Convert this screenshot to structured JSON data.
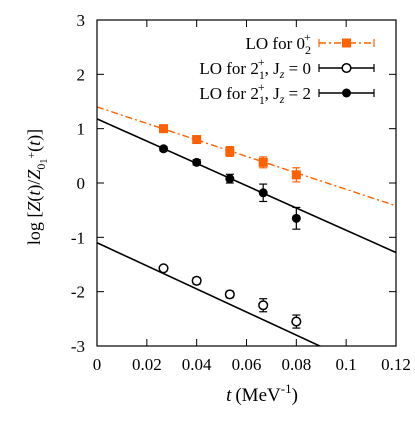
{
  "chart_data": {
    "type": "scatter",
    "xlabel_main": "t",
    "xlabel_unit": "(MeV",
    "xlabel_exp": "-1",
    "xlabel_close": ")",
    "ylabel": "log [Z(t)/Z01+(t)]",
    "xlim": [
      0,
      0.12
    ],
    "ylim": [
      -3,
      3
    ],
    "xticks": [
      0,
      0.02,
      0.04,
      0.06,
      0.08,
      0.1,
      0.12
    ],
    "xtick_labels": [
      "0",
      "0.02",
      "0.04",
      "0.06",
      "0.08",
      "0.1",
      "0.12"
    ],
    "yticks": [
      -3,
      -2,
      -1,
      0,
      1,
      2,
      3
    ],
    "ytick_labels": [
      "-3",
      "-2",
      "-1",
      "0",
      "1",
      "2",
      "3"
    ],
    "grid": false,
    "legend_position": "top-right",
    "series": [
      {
        "name": "LO for 0₂⁺",
        "color": "#ff6000",
        "marker": "filled-square",
        "line_style": "dash-dot",
        "fit_line": [
          [
            0,
            1.4
          ],
          [
            0.12,
            -0.42
          ]
        ],
        "points": [
          {
            "x": 0.0267,
            "y": 1.0,
            "err": 0.05
          },
          {
            "x": 0.04,
            "y": 0.8,
            "err": 0.06
          },
          {
            "x": 0.0533,
            "y": 0.58,
            "err": 0.09
          },
          {
            "x": 0.0667,
            "y": 0.38,
            "err": 0.1
          },
          {
            "x": 0.08,
            "y": 0.15,
            "err": 0.13
          }
        ]
      },
      {
        "name": "LO for 2₁⁺, Jz = 0",
        "color": "#000000",
        "marker": "open-circle",
        "line_style": "solid",
        "fit_line": [
          [
            0,
            -1.1
          ],
          [
            0.12,
            -3.65
          ]
        ],
        "points": [
          {
            "x": 0.0267,
            "y": -1.57,
            "err": 0.05
          },
          {
            "x": 0.04,
            "y": -1.8,
            "err": 0.06
          },
          {
            "x": 0.0533,
            "y": -2.05,
            "err": 0.06
          },
          {
            "x": 0.0667,
            "y": -2.25,
            "err": 0.12
          },
          {
            "x": 0.08,
            "y": -2.55,
            "err": 0.12
          }
        ]
      },
      {
        "name": "LO for 2₁⁺, Jz = 2",
        "color": "#000000",
        "marker": "filled-circle",
        "line_style": "solid",
        "fit_line": [
          [
            0,
            1.18
          ],
          [
            0.12,
            -1.28
          ]
        ],
        "points": [
          {
            "x": 0.0267,
            "y": 0.63,
            "err": 0.04
          },
          {
            "x": 0.04,
            "y": 0.38,
            "err": 0.05
          },
          {
            "x": 0.0533,
            "y": 0.08,
            "err": 0.08
          },
          {
            "x": 0.0667,
            "y": -0.18,
            "err": 0.16
          },
          {
            "x": 0.08,
            "y": -0.65,
            "err": 0.2
          }
        ]
      }
    ],
    "legend": [
      {
        "label_prefix": "LO for 0",
        "sub": "2",
        "sup": "+",
        "suffix": ""
      },
      {
        "label_prefix": "LO for 2",
        "sub": "1",
        "sup": "+",
        "suffix": ", J",
        "jsub": "z",
        "tail": " = 0"
      },
      {
        "label_prefix": "LO for 2",
        "sub": "1",
        "sup": "+",
        "suffix": ", J",
        "jsub": "z",
        "tail": " = 2"
      }
    ]
  }
}
